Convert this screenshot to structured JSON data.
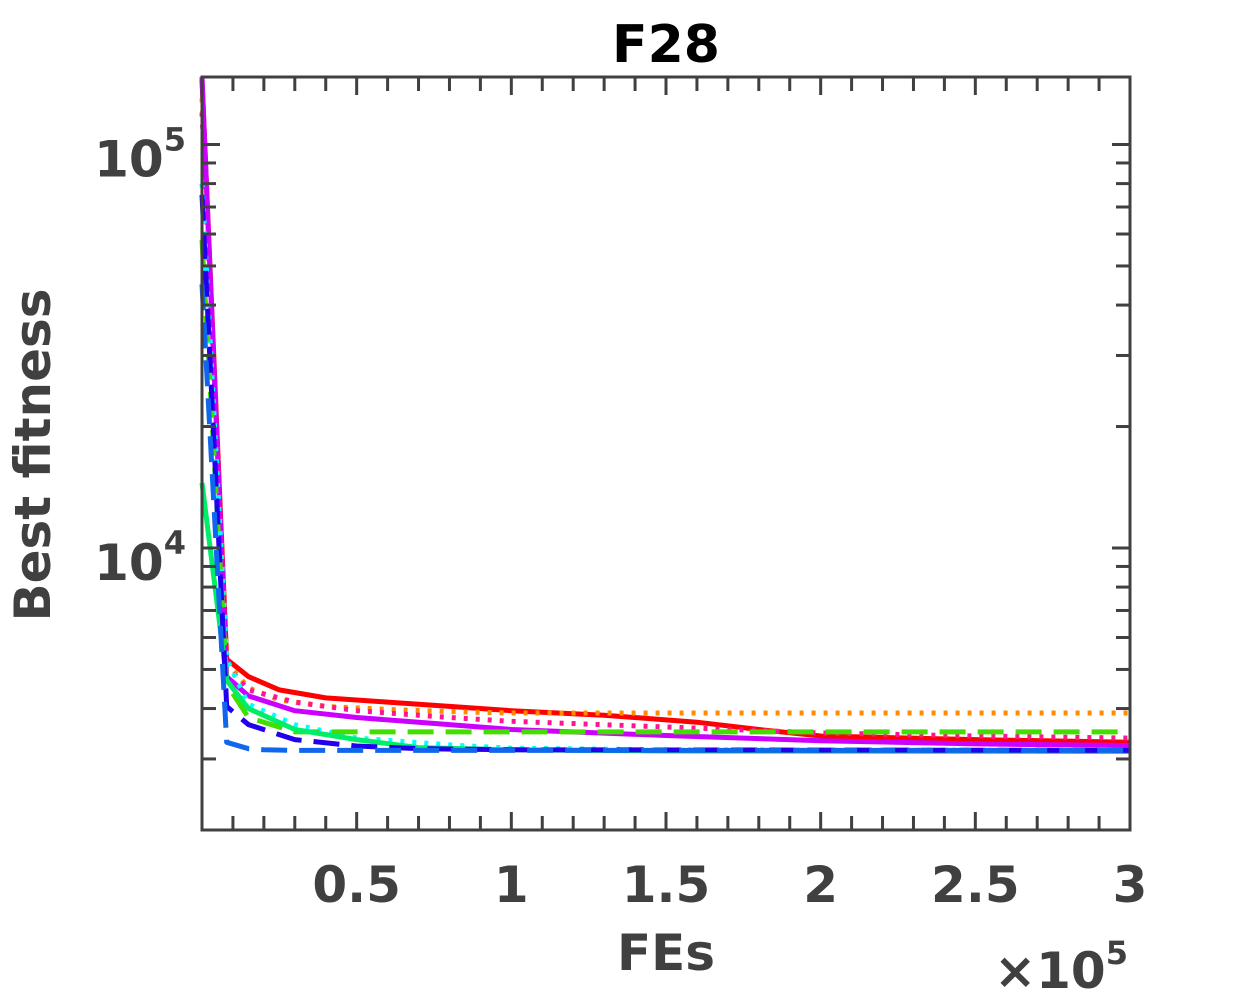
{
  "chart_data": {
    "type": "line",
    "title": "F28",
    "xlabel": "FEs",
    "ylabel": "Best fitness",
    "x_multiplier": "×10",
    "x_multiplier_exp": "5",
    "x_scale_factor": 100000,
    "xlim": [
      0,
      300000
    ],
    "ylim": [
      2000,
      147000
    ],
    "yscale": "log",
    "grid": false,
    "x_ticks": [
      "0.5",
      "1",
      "1.5",
      "2",
      "2.5",
      "3"
    ],
    "x_tick_values": [
      0.5,
      1,
      1.5,
      2,
      2.5,
      3
    ],
    "y_ticks": [
      {
        "base": "10",
        "exp": "4",
        "value": 10000
      },
      {
        "base": "10",
        "exp": "5",
        "value": 100000
      }
    ],
    "series": [
      {
        "color": "#FF0000",
        "dash": "solid",
        "x": [
          0,
          8000,
          15000,
          25000,
          40000,
          60000,
          80000,
          100000,
          130000,
          160000,
          180000,
          200000,
          250000,
          300000
        ],
        "y": [
          145000,
          5300,
          4800,
          4450,
          4250,
          4150,
          4050,
          3950,
          3850,
          3700,
          3550,
          3420,
          3350,
          3300
        ]
      },
      {
        "color": "#FF8C00",
        "dash": "dotted",
        "x": [
          0,
          8000,
          15000,
          25000,
          40000,
          60000,
          80000,
          100000,
          300000
        ],
        "y": [
          130000,
          5200,
          4500,
          4200,
          4050,
          3980,
          3930,
          3900,
          3900
        ]
      },
      {
        "color": "#FF1493",
        "dash": "dotted",
        "x": [
          0,
          8000,
          15000,
          30000,
          50000,
          80000,
          100000,
          150000,
          200000,
          250000,
          300000
        ],
        "y": [
          120000,
          5100,
          4450,
          4150,
          3950,
          3800,
          3720,
          3600,
          3480,
          3420,
          3380
        ]
      },
      {
        "color": "#CC00FF",
        "dash": "solid",
        "x": [
          0,
          8000,
          15000,
          30000,
          50000,
          80000,
          100000,
          150000,
          200000,
          250000,
          300000
        ],
        "y": [
          147000,
          4800,
          4300,
          3950,
          3800,
          3650,
          3550,
          3430,
          3330,
          3270,
          3240
        ]
      },
      {
        "color": "#00FFFF",
        "dash": "dotted",
        "x": [
          0,
          8000,
          15000,
          30000,
          50000,
          80000,
          100000,
          150000,
          300000
        ],
        "y": [
          80000,
          5300,
          4100,
          3650,
          3380,
          3250,
          3190,
          3160,
          3150
        ]
      },
      {
        "color": "#44DD00",
        "dash": "dashed",
        "x": [
          0,
          8000,
          15000,
          30000,
          50000,
          80000,
          100000,
          150000,
          300000
        ],
        "y": [
          58000,
          4600,
          3800,
          3500,
          3500,
          3500,
          3500,
          3500,
          3500
        ]
      },
      {
        "color": "#00EE66",
        "dash": "solid",
        "x": [
          0,
          8000,
          15000,
          30000,
          50000,
          70000,
          100000,
          150000,
          300000
        ],
        "y": [
          14500,
          4700,
          4000,
          3550,
          3350,
          3200,
          3160,
          3140,
          3130
        ]
      },
      {
        "color": "#2200EE",
        "dash": "dashed",
        "x": [
          0,
          8000,
          15000,
          30000,
          50000,
          70000,
          100000,
          300000
        ],
        "y": [
          75000,
          4050,
          3650,
          3350,
          3230,
          3180,
          3160,
          3150
        ]
      },
      {
        "color": "#1166EE",
        "dash": "dashed",
        "x": [
          0,
          8000,
          15000,
          20000,
          30000,
          50000,
          300000
        ],
        "y": [
          45000,
          3300,
          3180,
          3160,
          3150,
          3150,
          3150
        ]
      }
    ]
  }
}
